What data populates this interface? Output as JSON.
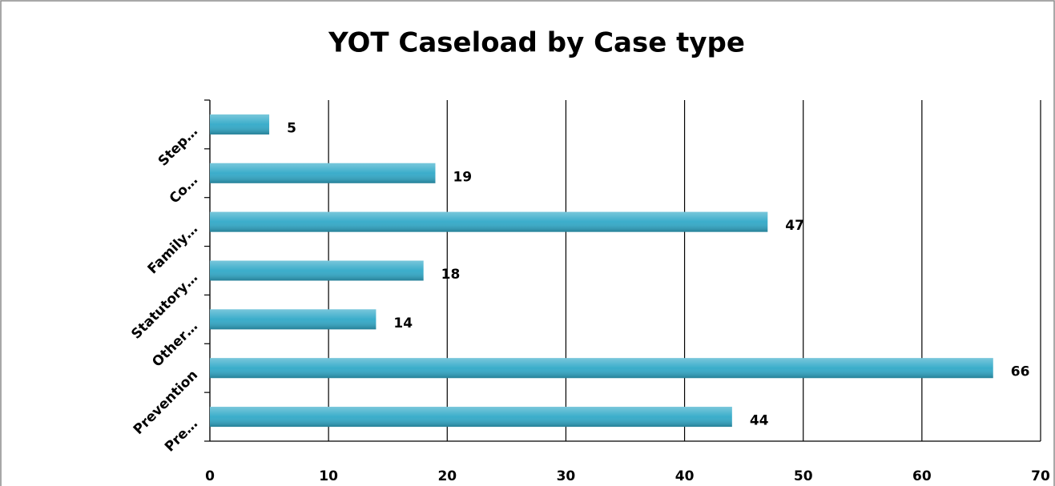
{
  "chart_data": {
    "type": "bar",
    "orientation": "horizontal",
    "title": "YOT Caseload by Case type",
    "categories": [
      "Pre…",
      "Prevention",
      "Other…",
      "Statutory…",
      "Family…",
      "Co…",
      "Step…"
    ],
    "values": [
      44,
      66,
      14,
      18,
      47,
      19,
      5
    ],
    "color": "#31a9c8",
    "xlim": [
      0,
      70
    ],
    "xticks": [
      0,
      10,
      20,
      30,
      40,
      50,
      60,
      70
    ],
    "grid": true
  }
}
